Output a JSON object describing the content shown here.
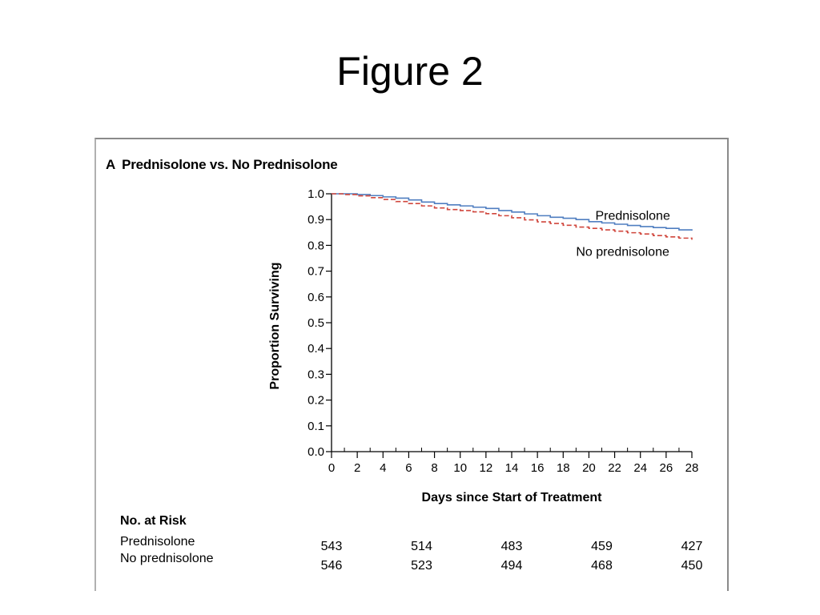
{
  "slide": {
    "title": "Figure 2"
  },
  "panel": {
    "letter": "A",
    "heading": "Prednisolone vs. No Prednisolone"
  },
  "chart_data": {
    "type": "line",
    "step": true,
    "xlabel": "Days since Start of Treatment",
    "ylabel": "Proportion Surviving",
    "xlim": [
      0,
      28
    ],
    "ylim": [
      0,
      1
    ],
    "xticks": [
      0,
      2,
      4,
      6,
      8,
      10,
      12,
      14,
      16,
      18,
      20,
      22,
      24,
      26,
      28
    ],
    "xticks_minor": [
      1,
      3,
      5,
      7,
      9,
      11,
      13,
      15,
      17,
      19,
      21,
      23,
      25,
      27
    ],
    "yticks": [
      0.0,
      0.1,
      0.2,
      0.3,
      0.4,
      0.5,
      0.6,
      0.7,
      0.8,
      0.9,
      1.0
    ],
    "ytick_labels": [
      "0.0",
      "0.1",
      "0.2",
      "0.3",
      "0.4",
      "0.5",
      "0.6",
      "0.7",
      "0.8",
      "0.9",
      "1.0"
    ],
    "grid": false,
    "series": [
      {
        "name": "Prednisolone",
        "color": "#4f7ec0",
        "dash": false,
        "x": [
          0,
          1,
          2,
          3,
          4,
          5,
          6,
          7,
          8,
          9,
          10,
          11,
          12,
          13,
          14,
          15,
          16,
          17,
          18,
          19,
          20,
          21,
          22,
          23,
          24,
          25,
          26,
          27,
          28
        ],
        "y": [
          1.0,
          1.0,
          0.997,
          0.993,
          0.988,
          0.983,
          0.976,
          0.968,
          0.962,
          0.957,
          0.953,
          0.948,
          0.943,
          0.935,
          0.929,
          0.922,
          0.915,
          0.909,
          0.905,
          0.9,
          0.892,
          0.887,
          0.882,
          0.877,
          0.873,
          0.869,
          0.866,
          0.86,
          0.857
        ]
      },
      {
        "name": "No prednisolone",
        "color": "#d0463c",
        "dash": true,
        "x": [
          0,
          1,
          2,
          3,
          4,
          5,
          6,
          7,
          8,
          9,
          10,
          11,
          12,
          13,
          14,
          15,
          16,
          17,
          18,
          19,
          20,
          21,
          22,
          23,
          24,
          25,
          26,
          27,
          28
        ],
        "y": [
          1.0,
          0.997,
          0.992,
          0.985,
          0.978,
          0.97,
          0.962,
          0.953,
          0.945,
          0.939,
          0.935,
          0.93,
          0.923,
          0.915,
          0.907,
          0.899,
          0.891,
          0.885,
          0.878,
          0.871,
          0.866,
          0.86,
          0.855,
          0.849,
          0.844,
          0.838,
          0.833,
          0.828,
          0.822
        ]
      }
    ],
    "annotations": [
      {
        "text": "Prednisolone",
        "x": 20.5,
        "y": 0.915
      },
      {
        "text": "No prednisolone",
        "x": 19.0,
        "y": 0.775
      }
    ]
  },
  "risk_table": {
    "title": "No. at Risk",
    "days": [
      0,
      7,
      14,
      21,
      28
    ],
    "rows": [
      {
        "label": "Prednisolone",
        "values": [
          "543",
          "514",
          "483",
          "459",
          "427"
        ]
      },
      {
        "label": "No prednisolone",
        "values": [
          "546",
          "523",
          "494",
          "468",
          "450"
        ]
      }
    ]
  }
}
